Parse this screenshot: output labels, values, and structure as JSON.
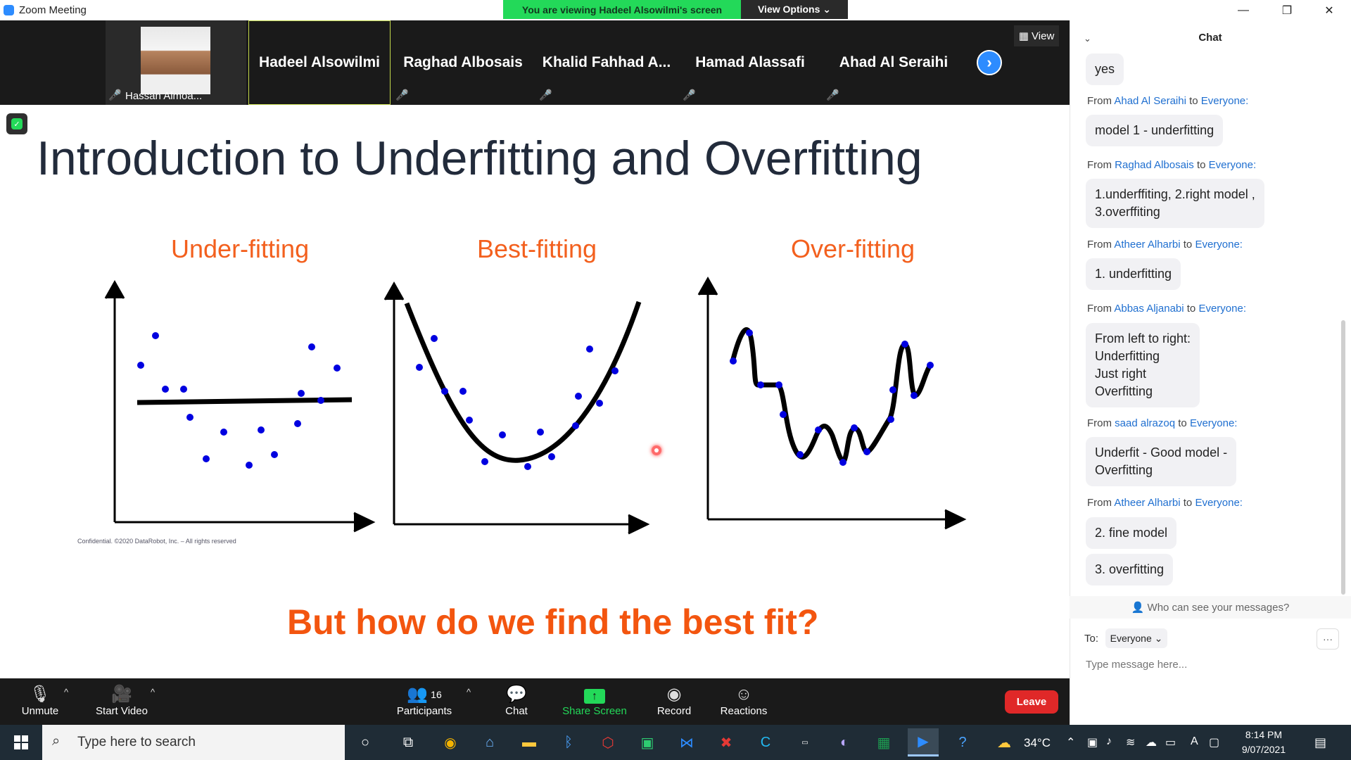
{
  "window": {
    "title": "Zoom Meeting",
    "banner": "You are viewing Hadeel Alsowilmi's screen",
    "view_options": "View Options ⌄",
    "minimize": "—",
    "restore": "❐",
    "close": "✕"
  },
  "participants": [
    {
      "name": "Hassan Almoa..."
    },
    {
      "name": "Hadeel Alsowilmi"
    },
    {
      "name": "Raghad Albosais"
    },
    {
      "name": "Khalid  Fahhad  A..."
    },
    {
      "name": "Hamad Alassafi"
    },
    {
      "name": "Ahad Al Seraihi"
    }
  ],
  "view_button": "View",
  "slide": {
    "title": "Introduction to Underfitting and Overfitting",
    "plots": [
      "Under-fitting",
      "Best-fitting",
      "Over-fitting"
    ],
    "question": "But how do we find the best fit?",
    "confidential": "Confidential. ©2020 DataRobot, Inc. – All rights reserved"
  },
  "toolbar": {
    "unmute": "Unmute",
    "start_video": "Start Video",
    "participants": "Participants",
    "participant_count": "16",
    "chat": "Chat",
    "share_screen": "Share Screen",
    "record": "Record",
    "reactions": "Reactions",
    "leave": "Leave"
  },
  "chat": {
    "title": "Chat",
    "first_message": "yes",
    "messages": [
      {
        "from": "Ahad Al Seraihi",
        "to": "Everyone:",
        "text": "model 1 - underfitting"
      },
      {
        "from": "Raghad Albosais",
        "to": "Everyone:",
        "text": "1.underffiting, 2.right model ,\n3.overffiting"
      },
      {
        "from": "Atheer Alharbi",
        "to": "Everyone:",
        "text": "1. underfitting"
      },
      {
        "from": "Abbas Aljanabi",
        "to": "Everyone:",
        "text": "From left to right:\nUnderfitting\nJust right\nOverfitting"
      },
      {
        "from": "saad alrazoq",
        "to": "Everyone:",
        "text": "Underfit - Good model -\nOverfitting"
      },
      {
        "from": "Atheer Alharbi",
        "to": "Everyone:",
        "text": "2. fine model"
      }
    ],
    "extra_message": "3. overfitting",
    "from_word": "From",
    "to_word": "to",
    "who_can_see": "Who can see your messages?",
    "to_label": "To:",
    "to_value": "Everyone ⌄",
    "input_placeholder": "Type message here..."
  },
  "taskbar": {
    "search_placeholder": "Type here to search",
    "temperature": "34°C",
    "time": "8:14 PM",
    "date": "9/07/2021"
  }
}
